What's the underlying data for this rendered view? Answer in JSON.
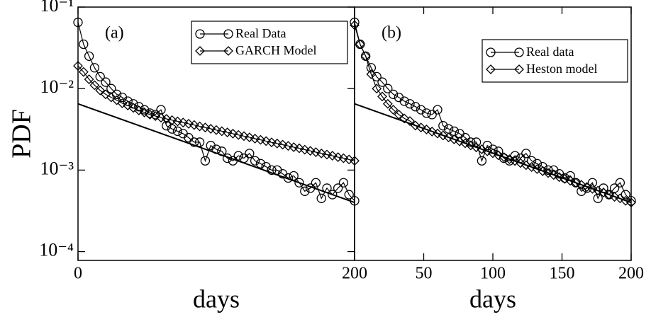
{
  "chart_data": [
    {
      "type": "line",
      "panel_label": "(a)",
      "ylabel": "PDF",
      "xlabel": "days",
      "log_y": true,
      "legend": "upper right",
      "xlim": [
        0,
        200
      ],
      "xticks": [
        0,
        200
      ],
      "ylim": [
        7.8e-05,
        0.1
      ],
      "yticks": [
        {
          "value": 0.1,
          "label": "10⁻¹"
        },
        {
          "value": 0.01,
          "label": "10⁻²"
        },
        {
          "value": 0.001,
          "label": "10⁻³"
        },
        {
          "value": 0.0001,
          "label": "10⁻⁴"
        }
      ],
      "x": [
        0,
        4,
        8,
        12,
        16,
        20,
        24,
        28,
        32,
        36,
        40,
        44,
        48,
        52,
        56,
        60,
        64,
        68,
        72,
        76,
        80,
        84,
        88,
        92,
        96,
        100,
        104,
        108,
        112,
        116,
        120,
        124,
        128,
        132,
        136,
        140,
        144,
        148,
        152,
        156,
        160,
        164,
        168,
        172,
        176,
        180,
        184,
        188,
        192,
        196,
        200
      ],
      "series": [
        {
          "name": "Real Data",
          "color": "#000000",
          "marker": "circle",
          "values": [
            0.065,
            0.035,
            0.025,
            0.018,
            0.014,
            0.012,
            0.01,
            0.0085,
            0.0078,
            0.007,
            0.0065,
            0.006,
            0.0055,
            0.005,
            0.0048,
            0.0055,
            0.0035,
            0.0032,
            0.003,
            0.0028,
            0.0025,
            0.0022,
            0.0022,
            0.0013,
            0.002,
            0.0018,
            0.0017,
            0.0014,
            0.0013,
            0.0015,
            0.0014,
            0.0016,
            0.0013,
            0.0012,
            0.0011,
            0.001,
            0.001,
            0.0009,
            0.0008,
            0.00085,
            0.0007,
            0.00055,
            0.0006,
            0.0007,
            0.00045,
            0.0006,
            0.0005,
            0.0006,
            0.0007,
            0.0005,
            0.00042
          ]
        },
        {
          "name": "GARCH Model",
          "color": "#000000",
          "marker": "diamond",
          "values": [
            0.019,
            0.016,
            0.013,
            0.011,
            0.0095,
            0.0085,
            0.0078,
            0.0072,
            0.0066,
            0.0062,
            0.0058,
            0.0054,
            0.0051,
            0.0048,
            0.0046,
            0.0044,
            0.00425,
            0.0041,
            0.00396,
            0.00383,
            0.0037,
            0.00357,
            0.00344,
            0.00333,
            0.00321,
            0.0031,
            0.003,
            0.0029,
            0.0028,
            0.0027,
            0.00261,
            0.00252,
            0.00243,
            0.00235,
            0.00227,
            0.00219,
            0.00212,
            0.00205,
            0.00198,
            0.00191,
            0.00185,
            0.00178,
            0.00172,
            0.00166,
            0.0016,
            0.00155,
            0.0015,
            0.00144,
            0.0014,
            0.00135,
            0.0013
          ]
        },
        {
          "color": "#000000",
          "marker": "none",
          "x": [
            0,
            200
          ],
          "values": [
            0.0065,
            0.0004
          ]
        }
      ]
    },
    {
      "type": "line",
      "panel_label": "(b)",
      "xlabel": "days",
      "log_y": true,
      "legend": "upper right",
      "xlim": [
        0,
        200
      ],
      "xticks": [
        50,
        100,
        150,
        200
      ],
      "ylim": [
        7.8e-05,
        0.1
      ],
      "x": [
        0,
        4,
        8,
        12,
        16,
        20,
        24,
        28,
        32,
        36,
        40,
        44,
        48,
        52,
        56,
        60,
        64,
        68,
        72,
        76,
        80,
        84,
        88,
        92,
        96,
        100,
        104,
        108,
        112,
        116,
        120,
        124,
        128,
        132,
        136,
        140,
        144,
        148,
        152,
        156,
        160,
        164,
        168,
        172,
        176,
        180,
        184,
        188,
        192,
        196,
        200
      ],
      "series": [
        {
          "name": "Real data",
          "color": "#000000",
          "marker": "circle",
          "values": [
            0.065,
            0.035,
            0.025,
            0.018,
            0.014,
            0.012,
            0.01,
            0.0085,
            0.0078,
            0.007,
            0.0065,
            0.006,
            0.0055,
            0.005,
            0.0048,
            0.0055,
            0.0035,
            0.0032,
            0.003,
            0.0028,
            0.0025,
            0.0022,
            0.0022,
            0.0013,
            0.002,
            0.0018,
            0.0017,
            0.0014,
            0.0013,
            0.0015,
            0.0014,
            0.0016,
            0.0013,
            0.0012,
            0.0011,
            0.001,
            0.001,
            0.0009,
            0.0008,
            0.00085,
            0.0007,
            0.00055,
            0.0006,
            0.0007,
            0.00045,
            0.0006,
            0.0005,
            0.0006,
            0.0007,
            0.0005,
            0.00042
          ]
        },
        {
          "name": "Heston model",
          "color": "#000000",
          "marker": "diamond",
          "values": [
            0.06,
            0.035,
            0.025,
            0.015,
            0.01,
            0.008,
            0.0065,
            0.0055,
            0.0048,
            0.0043,
            0.004,
            0.00352,
            0.00333,
            0.00315,
            0.00297,
            0.00281,
            0.00266,
            0.00252,
            0.00238,
            0.00225,
            0.00213,
            0.00201,
            0.0019,
            0.0018,
            0.0017,
            0.00161,
            0.00152,
            0.00144,
            0.00136,
            0.00129,
            0.00122,
            0.00115,
            0.00109,
            0.00103,
            0.00097,
            0.00092,
            0.00087,
            0.00082,
            0.00078,
            0.00074,
            0.0007,
            0.00066,
            0.00062,
            0.00059,
            0.00056,
            0.00053,
            0.0005,
            0.00047,
            0.00045,
            0.00042,
            0.0004
          ]
        },
        {
          "color": "#000000",
          "marker": "none",
          "x": [
            0,
            200
          ],
          "values": [
            0.0065,
            0.0004
          ]
        }
      ]
    }
  ]
}
